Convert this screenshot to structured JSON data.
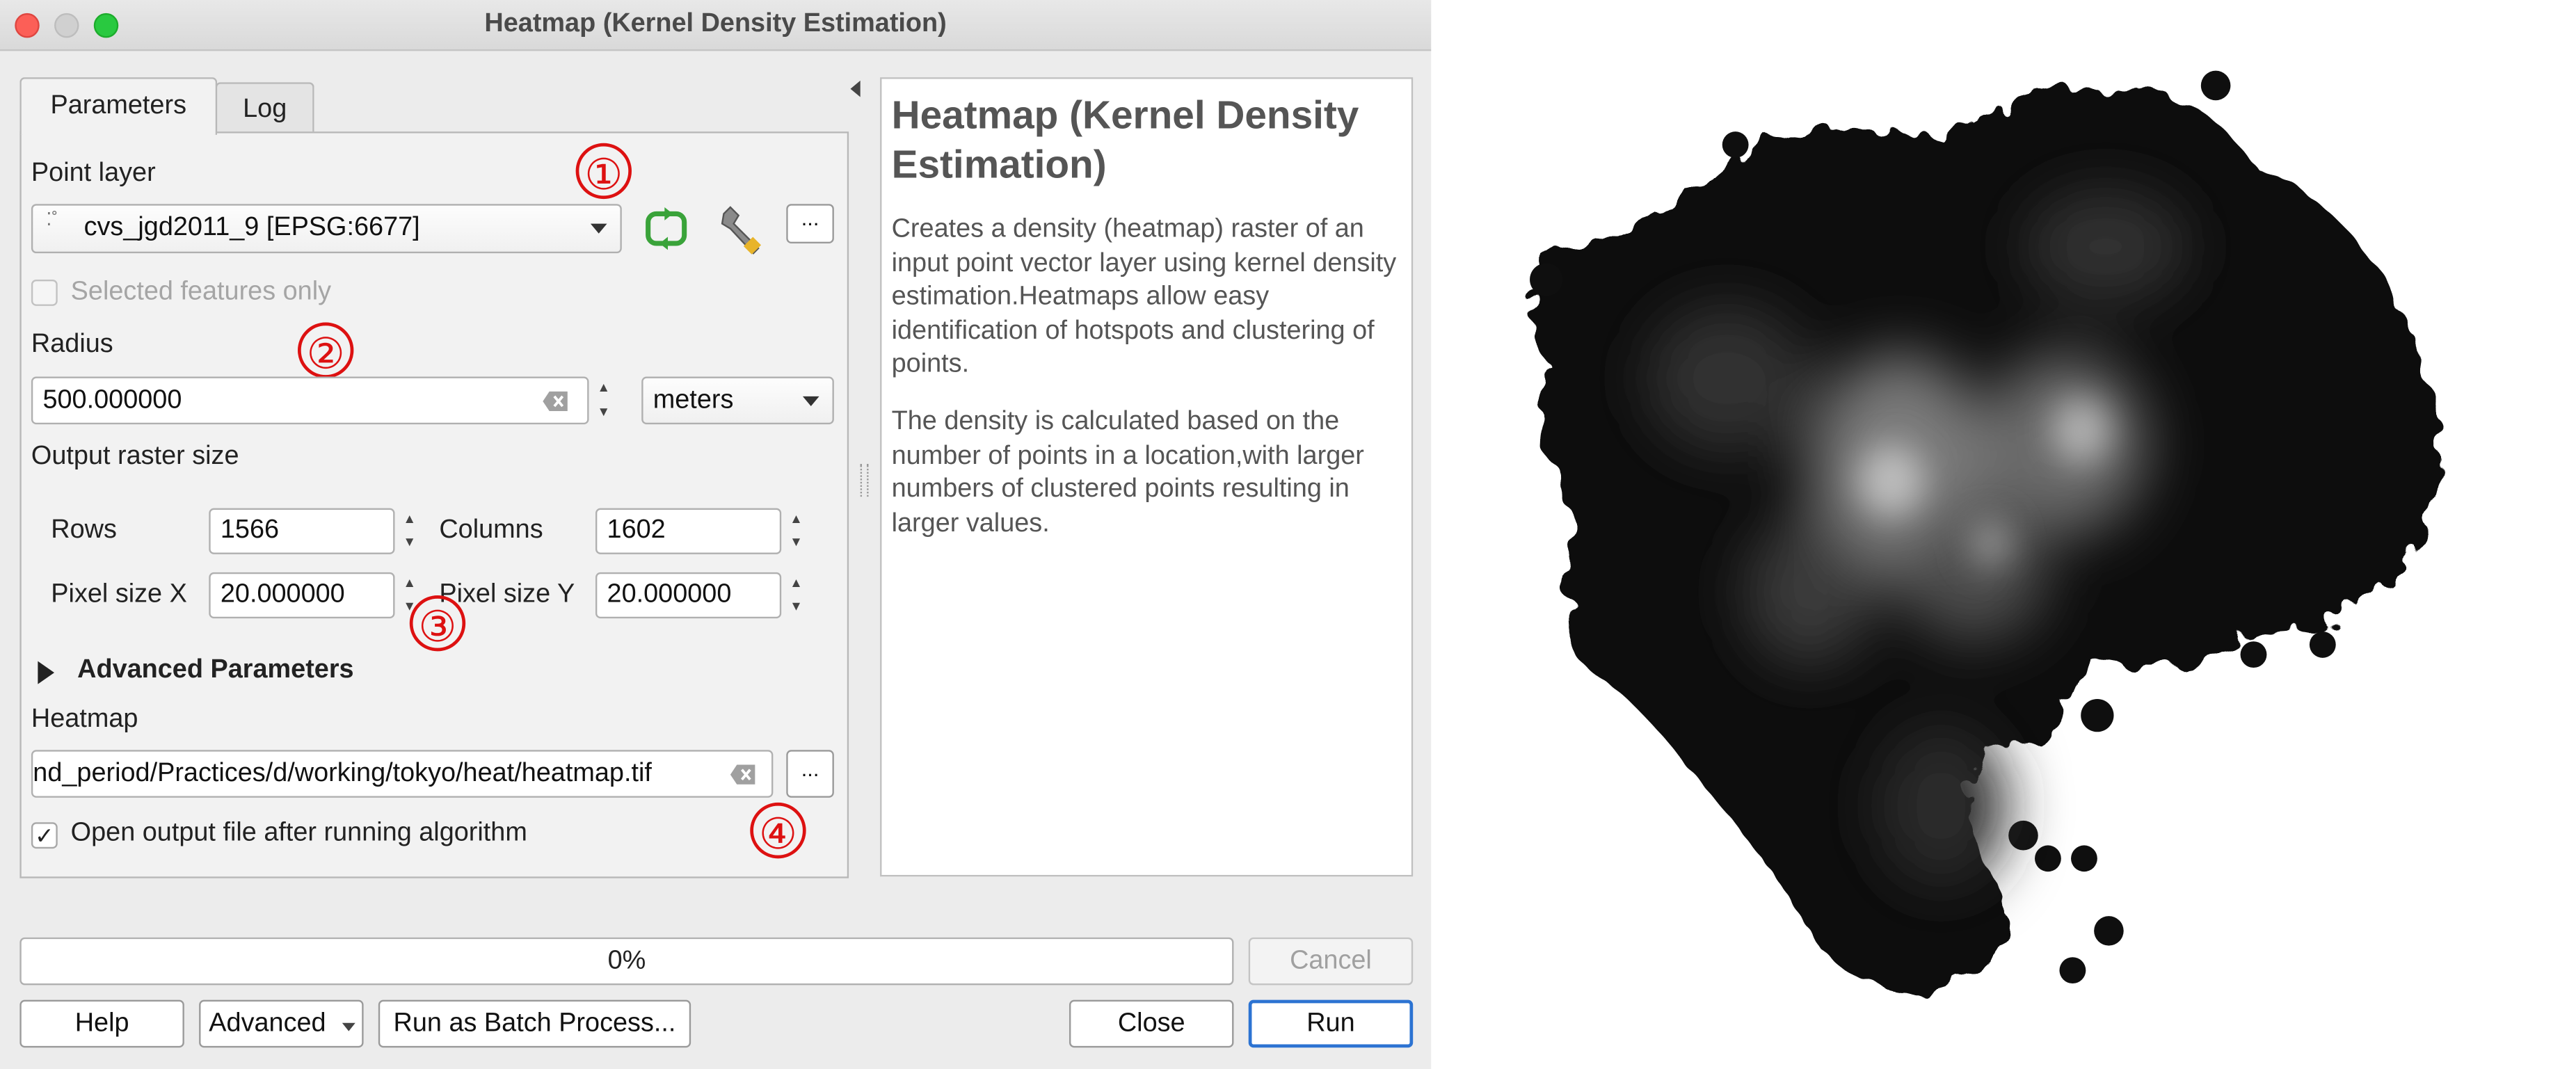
{
  "window": {
    "title": "Heatmap (Kernel Density Estimation)"
  },
  "tabs": {
    "parameters": "Parameters",
    "log": "Log"
  },
  "point_layer": {
    "label": "Point layer",
    "value": "cvs_jgd2011_9 [EPSG:6677]",
    "selected_only_label": "Selected features only",
    "browse_label": "..."
  },
  "radius": {
    "label": "Radius",
    "value": "500.000000",
    "unit": "meters"
  },
  "raster": {
    "label": "Output raster size",
    "rows_label": "Rows",
    "rows_value": "1566",
    "columns_label": "Columns",
    "columns_value": "1602",
    "px_label": "Pixel size X",
    "px_value": "20.000000",
    "py_label": "Pixel size Y",
    "py_value": "20.000000"
  },
  "advanced": {
    "label": "Advanced Parameters"
  },
  "heatmap": {
    "label": "Heatmap",
    "value": "nd_period/Practices/d/working/tokyo/heat/heatmap.tif",
    "browse_label": "..."
  },
  "open_output": {
    "label": "Open output file after running algorithm",
    "checked": true
  },
  "annotations": {
    "n1": "①",
    "n2": "②",
    "n3": "③",
    "n4": "④"
  },
  "help": {
    "title": "Heatmap (Kernel Density Estimation)",
    "para1": "Creates a density (heatmap) raster of an input point vector layer using kernel density estimation.Heatmaps allow easy identification of hotspots and clustering of points.",
    "para2": "The density is calculated based on the number of points in a location,with larger numbers of clustered points resulting in larger values."
  },
  "progress": {
    "text": "0%",
    "fraction": 0
  },
  "buttons": {
    "cancel": "Cancel",
    "help": "Help",
    "advanced": "Advanced",
    "batch": "Run as Batch Process...",
    "close": "Close",
    "run": "Run"
  },
  "colors": {
    "annotation": "#dd1111",
    "accent": "#2c73d2",
    "refresh_icon": "#3aa33a"
  }
}
